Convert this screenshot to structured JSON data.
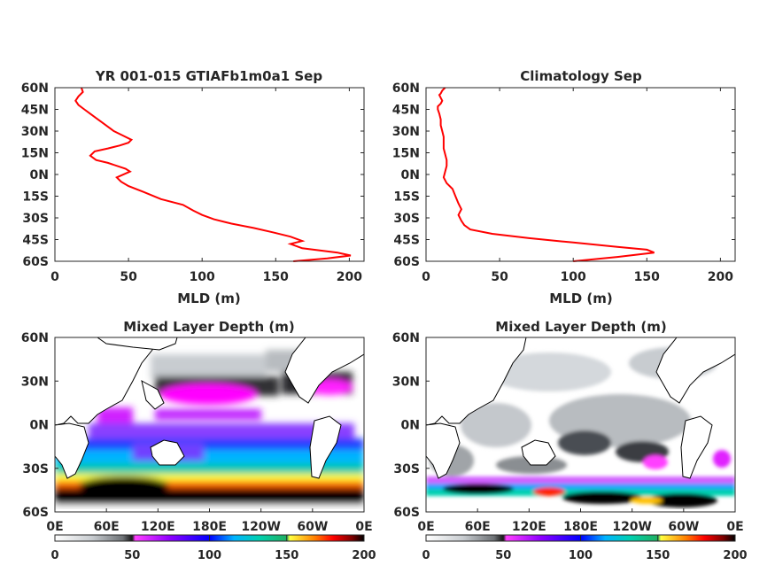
{
  "chart_data": [
    {
      "type": "line",
      "title": "YR 001-015 GTIAFb1m0a1 Sep",
      "xlabel": "MLD (m)",
      "ylabel": "",
      "xlim": [
        0,
        210
      ],
      "ylim": [
        -60,
        60
      ],
      "xticks": [
        0,
        50,
        100,
        150,
        200
      ],
      "yticks": [
        "60N",
        "45N",
        "30N",
        "15N",
        "0N",
        "15S",
        "30S",
        "45S",
        "60S"
      ],
      "line_color": "#ff0000",
      "grid": false,
      "series": [
        {
          "x": [
            162,
            185,
            201,
            192,
            168,
            160,
            168,
            160,
            148,
            135,
            120,
            108,
            100,
            94,
            87,
            72,
            60,
            50,
            45,
            42,
            51,
            48,
            36,
            28,
            24,
            27,
            36,
            44,
            50,
            52,
            46,
            40,
            36,
            32,
            28,
            24,
            20,
            16,
            14,
            16,
            19,
            18
          ],
          "y": [
            -60,
            -58,
            -56,
            -54,
            -51,
            -48,
            -46,
            -43,
            -40,
            -37,
            -34,
            -31,
            -28,
            -25,
            -21,
            -17,
            -12,
            -8,
            -5,
            -2,
            2,
            4,
            8,
            10,
            13,
            16,
            18,
            20,
            22,
            24,
            27,
            30,
            33,
            36,
            39,
            42,
            45,
            48,
            51,
            54,
            57,
            60
          ]
        }
      ]
    },
    {
      "type": "line",
      "title": "Climatology Sep",
      "xlabel": "MLD (m)",
      "ylabel": "",
      "xlim": [
        0,
        210
      ],
      "ylim": [
        -60,
        60
      ],
      "xticks": [
        0,
        50,
        100,
        150,
        200
      ],
      "yticks": [
        "60N",
        "45N",
        "30N",
        "15N",
        "0N",
        "15S",
        "30S",
        "45S",
        "60S"
      ],
      "line_color": "#ff0000",
      "grid": false,
      "series": [
        {
          "x": [
            100,
            130,
            155,
            150,
            130,
            100,
            70,
            45,
            30,
            26,
            24,
            22,
            24,
            22,
            20,
            18,
            14,
            12,
            13,
            14,
            14,
            13,
            12,
            12,
            12,
            11,
            10,
            10,
            9,
            8,
            8,
            10,
            11,
            10,
            9,
            10,
            11,
            12,
            13
          ],
          "y": [
            -60,
            -57,
            -54,
            -52,
            -50,
            -47,
            -44,
            -41,
            -38,
            -35,
            -32,
            -28,
            -24,
            -20,
            -15,
            -10,
            -6,
            -2,
            2,
            6,
            10,
            14,
            18,
            22,
            26,
            30,
            34,
            38,
            42,
            45,
            47,
            49,
            51,
            53,
            55,
            56,
            58,
            59,
            60
          ]
        }
      ]
    },
    {
      "type": "heatmap",
      "title": "Mixed Layer Depth (m)",
      "xticks": [
        "0E",
        "60E",
        "120E",
        "180E",
        "120W",
        "60W",
        "0E"
      ],
      "yticks": [
        "60N",
        "30N",
        "0N",
        "30S",
        "60S"
      ],
      "colorbar_ticks": [
        0,
        50,
        100,
        150,
        200
      ],
      "clim": [
        0,
        200
      ],
      "colormap": [
        "#ffffff",
        "#d0d4d8",
        "#8a8e92",
        "#202020",
        "#ff00ff",
        "#8000ff",
        "#0000ff",
        "#00c8ff",
        "#00c090",
        "#20b050",
        "#ffff00",
        "#ff8000",
        "#ff0000",
        "#800000",
        "#000000"
      ]
    },
    {
      "type": "heatmap",
      "title": "Mixed Layer Depth (m)",
      "xticks": [
        "0E",
        "60E",
        "120E",
        "180E",
        "120W",
        "60W",
        "0E"
      ],
      "yticks": [
        "60N",
        "30N",
        "0N",
        "30S",
        "60S"
      ],
      "colorbar_ticks": [
        0,
        50,
        100,
        150,
        200
      ],
      "clim": [
        0,
        200
      ],
      "colormap": [
        "#ffffff",
        "#d0d4d8",
        "#8a8e92",
        "#202020",
        "#ff00ff",
        "#8000ff",
        "#0000ff",
        "#00c8ff",
        "#00c090",
        "#20b050",
        "#ffff00",
        "#ff8000",
        "#ff0000",
        "#800000",
        "#000000"
      ]
    }
  ]
}
